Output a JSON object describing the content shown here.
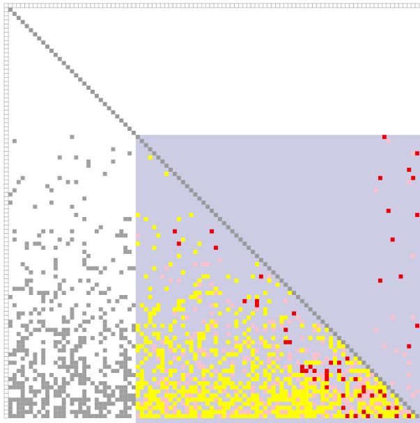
{
  "matrix": {
    "size": 100,
    "colors": {
      "background": "#ffffff",
      "focus_region": "#cccce5",
      "header_cell": "#ffffff",
      "header_border": "#a0a0a0",
      "diagonal": "#999999",
      "outside_entry": "#a0a0a0",
      "yellow_entry": "#ffff00",
      "pink_entry": "#ffc0cb",
      "red_entry": "#ee0000"
    },
    "focus_start_index": 31,
    "diagonal_rows": "all",
    "entry_legend": [
      {
        "class": "outside_entry"
      },
      {
        "class": "yellow_entry"
      },
      {
        "class": "pink_entry"
      },
      {
        "class": "red_entry"
      }
    ]
  }
}
